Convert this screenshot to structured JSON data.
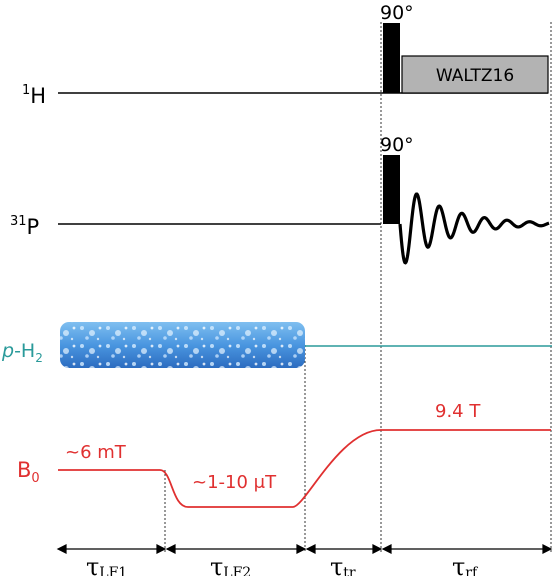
{
  "channels": {
    "proton": {
      "sup": "1",
      "base": "H"
    },
    "phosphorus": {
      "sup": "31",
      "base": "P"
    },
    "parahydrogen": {
      "prefix": "p",
      "suffix": "-H",
      "sub": "2"
    },
    "field": {
      "base": "B",
      "sub": "0"
    }
  },
  "pulses": {
    "proton_pulse": "90°",
    "phosphorus_pulse": "90°",
    "decoupling": "WALTZ16"
  },
  "field_levels": {
    "low1": "~6 mT",
    "low2": "~1-10 μT",
    "high": "9.4 T"
  },
  "timing": [
    {
      "symbol": "τ",
      "sub": "LF1"
    },
    {
      "symbol": "τ",
      "sub": "LF2"
    },
    {
      "symbol": "τ",
      "sub": "tr"
    },
    {
      "symbol": "τ",
      "sub": "rf"
    }
  ],
  "colors": {
    "field": "#e03030",
    "parahydrogen": "#2a9a9a",
    "bubble_light": "#a8d4f2",
    "bubble_dark": "#2a70c0",
    "decoupling_fill": "#b3b3b3",
    "line": "#000000"
  }
}
